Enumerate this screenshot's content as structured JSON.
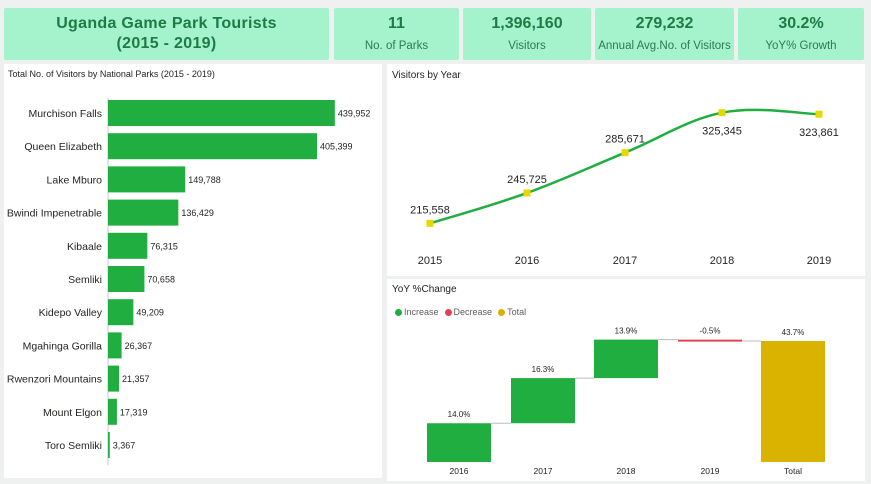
{
  "header": {
    "title_line1": "Uganda Game Park Tourists",
    "title_line2": "(2015 - 2019)"
  },
  "kpis": [
    {
      "value": "11",
      "label": "No. of Parks"
    },
    {
      "value": "1,396,160",
      "label": "Visitors"
    },
    {
      "value": "279,232",
      "label": "Annual Avg.No. of Visitors"
    },
    {
      "value": "30.2%",
      "label": "YoY% Growth"
    }
  ],
  "colors": {
    "card_bg": "#a5f3cc",
    "bar": "#1fae3f",
    "increase": "#1fae3f",
    "decrease": "#e0434f",
    "total": "#d9b300",
    "marker": "#e8d800",
    "title_text": "#1e7a46"
  },
  "chart_data": [
    {
      "type": "bar",
      "orientation": "horizontal",
      "title": "Total No. of Visitors by National Parks (2015 - 2019)",
      "categories": [
        "Murchison Falls",
        "Queen Elizabeth",
        "Lake Mburo",
        "Bwindi Impenetrable",
        "Kibaale",
        "Semliki",
        "Kidepo Valley",
        "Mgahinga Gorilla",
        "Rwenzori Mountains",
        "Mount Elgon",
        "Toro Semliki"
      ],
      "values": [
        439952,
        405399,
        149788,
        136429,
        76315,
        70658,
        49209,
        26367,
        21357,
        17319,
        3367
      ],
      "value_labels": [
        "439,952",
        "405,399",
        "149,788",
        "136,429",
        "76,315",
        "70,658",
        "49,209",
        "26,367",
        "21,357",
        "17,319",
        "3,367"
      ],
      "xlim": [
        0,
        450000
      ]
    },
    {
      "type": "line",
      "title": "Visitors by Year",
      "x": [
        "2015",
        "2016",
        "2017",
        "2018",
        "2019"
      ],
      "values": [
        215558,
        245725,
        285671,
        325345,
        323861
      ],
      "value_labels": [
        "215,558",
        "245,725",
        "285,671",
        "325,345",
        "323,861"
      ],
      "ylim": [
        205000,
        330000
      ]
    },
    {
      "type": "waterfall",
      "title": "YoY %Change",
      "legend": [
        "Increase",
        "Decrease",
        "Total"
      ],
      "legend_position": "top-left",
      "categories": [
        "2016",
        "2017",
        "2018",
        "2019",
        "Total"
      ],
      "values": [
        14.0,
        16.3,
        13.9,
        -0.5,
        43.7
      ],
      "kinds": [
        "increase",
        "increase",
        "increase",
        "decrease",
        "total"
      ],
      "value_labels": [
        "14.0%",
        "16.3%",
        "13.9%",
        "-0.5%",
        "43.7%"
      ],
      "ylim": [
        0,
        43.7
      ]
    }
  ]
}
